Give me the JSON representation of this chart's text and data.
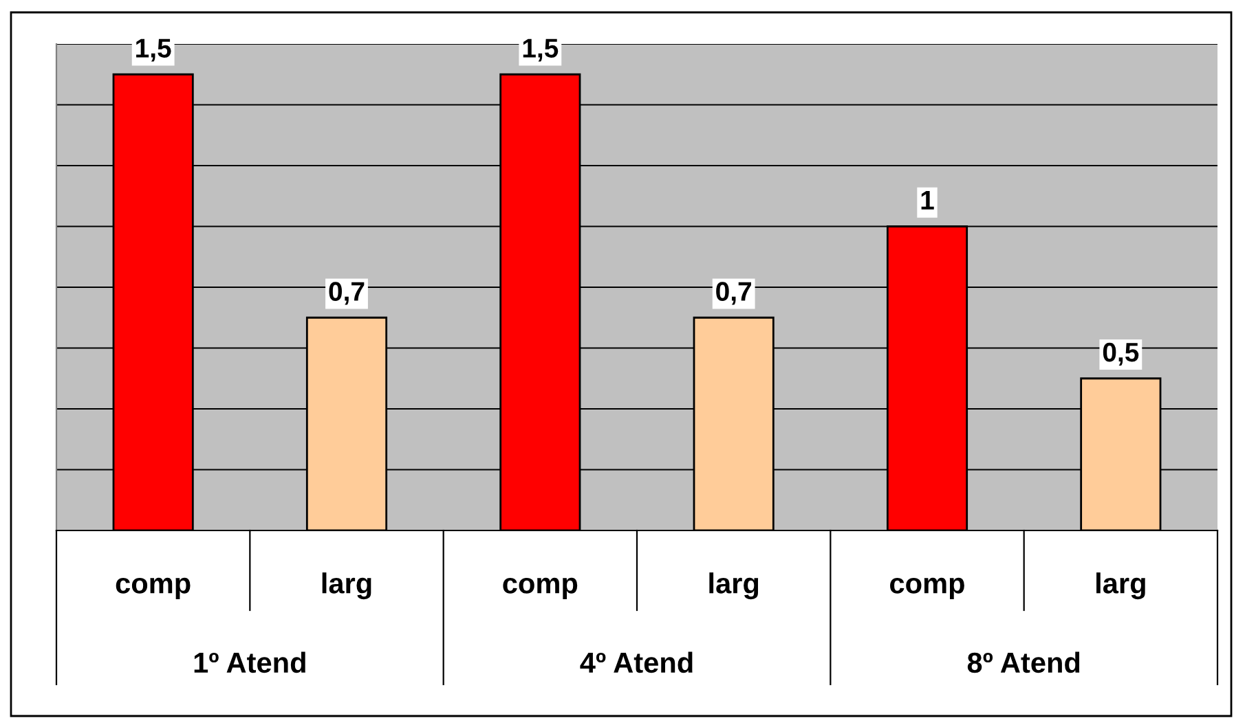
{
  "chart_data": {
    "type": "bar",
    "categories": [
      "comp",
      "larg",
      "comp",
      "larg",
      "comp",
      "larg"
    ],
    "values": [
      1.5,
      0.7,
      1.5,
      0.7,
      1,
      0.5
    ],
    "colors": [
      "#ff0000",
      "#ffcc99",
      "#ff0000",
      "#ffcc99",
      "#ff0000",
      "#ffcc99"
    ],
    "value_labels": [
      "1,5",
      "0,7",
      "1,5",
      "0,7",
      "1",
      "0,5"
    ],
    "annotations": [
      "1º Atend",
      "4º Atend",
      "8º Atend"
    ],
    "ylim": [
      0,
      1.6
    ],
    "yticks": [
      {
        "value": 0,
        "label": null
      },
      {
        "value": 0.2,
        "label": null
      },
      {
        "value": 0.4,
        "label": null
      },
      {
        "value": 0.6,
        "label": null
      },
      {
        "value": 0.8,
        "label": null
      },
      {
        "value": 1.0,
        "label": null
      },
      {
        "value": 1.2,
        "label": null
      },
      {
        "value": 1.4,
        "label": null
      },
      {
        "value": 1.6,
        "label": null
      }
    ],
    "grid": "y",
    "tick_labels": "x"
  }
}
